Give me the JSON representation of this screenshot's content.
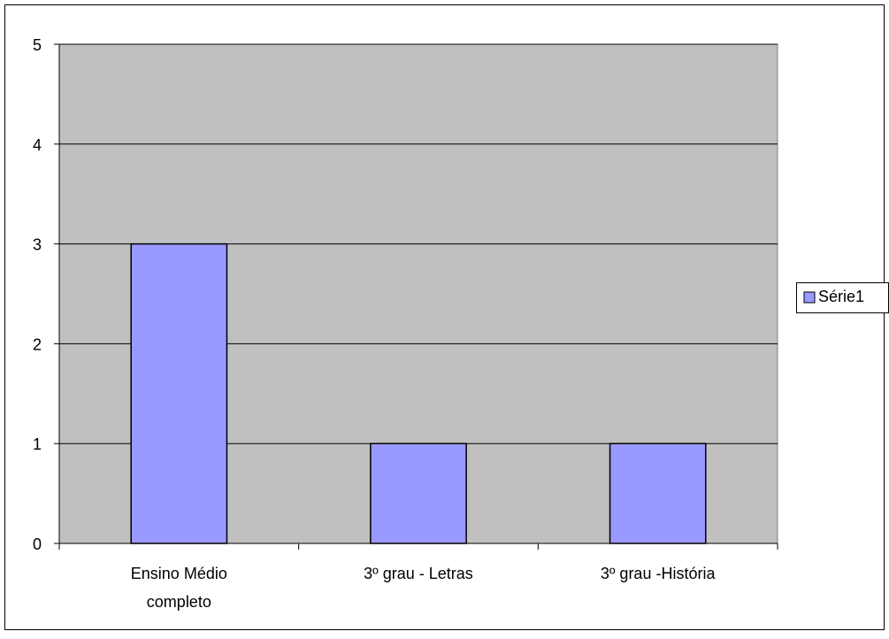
{
  "chart_data": {
    "type": "bar",
    "categories": [
      "Ensino Médio completo",
      "3º grau - Letras",
      "3º grau -História"
    ],
    "category_lines": [
      [
        "Ensino Médio",
        "completo"
      ],
      [
        "3º grau - Letras"
      ],
      [
        "3º grau -História"
      ]
    ],
    "series": [
      {
        "name": "Série1",
        "values": [
          3,
          1,
          1
        ]
      }
    ],
    "yticks": [
      "0",
      "1",
      "2",
      "3",
      "4",
      "5"
    ],
    "ylim": [
      0,
      5
    ],
    "grid": true,
    "legend_position": "right",
    "colors": {
      "plot_background": "#c0c0c0",
      "bar_fill": "#9999ff",
      "bar_stroke": "#000000",
      "grid": "#000000",
      "frame": "#000000"
    }
  }
}
